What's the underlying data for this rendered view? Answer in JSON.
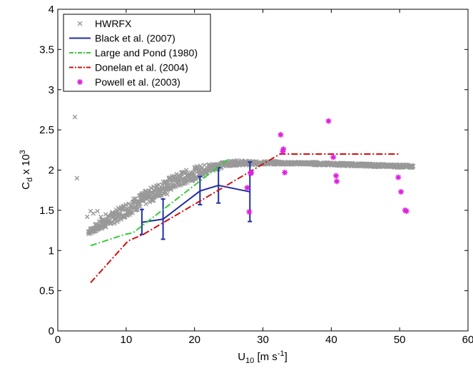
{
  "chart_data": {
    "type": "scatter",
    "xlabel_main": "U",
    "xlabel_sub": "10",
    "xlabel_unit": " [m s",
    "xlabel_sup": "-1",
    "xlabel_close": "]",
    "ylabel_main": "C",
    "ylabel_sub": "d",
    "ylabel_unit": " x 10",
    "ylabel_sup": "3",
    "xlim": [
      0,
      60
    ],
    "ylim": [
      0,
      4
    ],
    "xticks": [
      "0",
      "10",
      "20",
      "30",
      "40",
      "50",
      "60"
    ],
    "yticks": [
      "0",
      "0.5",
      "1",
      "1.5",
      "2",
      "2.5",
      "3",
      "3.5",
      "4"
    ],
    "legend_position": "top-left",
    "grid": false,
    "series": [
      {
        "name": "HWRFX",
        "kind": "band-scatter",
        "color": "#999999",
        "band_x": [
          4.5,
          6,
          8,
          10,
          12,
          14,
          16,
          18,
          20,
          22,
          24,
          25,
          26,
          27,
          28,
          30,
          32,
          34,
          36,
          38,
          40,
          42,
          44,
          46,
          48,
          50,
          52
        ],
        "band_low": [
          1.2,
          1.25,
          1.32,
          1.42,
          1.52,
          1.62,
          1.72,
          1.8,
          1.88,
          1.96,
          2.03,
          2.05,
          2.06,
          2.06,
          2.06,
          2.07,
          2.07,
          2.07,
          2.07,
          2.06,
          2.06,
          2.05,
          2.05,
          2.04,
          2.04,
          2.03,
          2.03
        ],
        "band_high": [
          1.26,
          1.36,
          1.48,
          1.6,
          1.7,
          1.8,
          1.9,
          1.98,
          2.04,
          2.08,
          2.1,
          2.11,
          2.12,
          2.12,
          2.11,
          2.11,
          2.11,
          2.1,
          2.1,
          2.1,
          2.09,
          2.09,
          2.08,
          2.08,
          2.07,
          2.07,
          2.06
        ],
        "outliers_x": [
          2.5,
          2.8,
          4.3,
          4.8,
          5.2,
          5.8,
          6.3,
          7.0,
          8.5,
          9.5,
          11.2,
          12.5,
          14.0,
          16.0
        ],
        "outliers_y": [
          2.66,
          1.9,
          1.42,
          1.49,
          1.46,
          1.49,
          1.42,
          1.45,
          1.48,
          1.53,
          1.6,
          1.64,
          1.66,
          1.7
        ]
      },
      {
        "name": "Black et al. (2007)",
        "kind": "line-errorbar",
        "color": "#1f2fa8",
        "x": [
          12.3,
          15.4,
          20.8,
          23.5,
          28.1
        ],
        "y": [
          1.35,
          1.39,
          1.74,
          1.81,
          1.73
        ],
        "err_low": [
          1.2,
          1.14,
          1.57,
          1.59,
          1.36
        ],
        "err_high": [
          1.51,
          1.64,
          1.92,
          2.03,
          2.1
        ]
      },
      {
        "name": "Large and Pond (1980)",
        "kind": "dashdot",
        "color": "#33cc33",
        "x": [
          4.8,
          9.8,
          11.0,
          25.0
        ],
        "y": [
          1.06,
          1.2,
          1.22,
          2.14
        ]
      },
      {
        "name": "Donelan et al. (2004)",
        "kind": "dashdot",
        "color": "#cc1111",
        "x": [
          4.8,
          10.3,
          12.5,
          32.5,
          50.0
        ],
        "y": [
          0.6,
          1.12,
          1.2,
          2.2,
          2.2
        ]
      },
      {
        "name": "Powell et al. (2003)",
        "kind": "asterisk",
        "color": "#dd22dd",
        "x": [
          27.7,
          28.0,
          28.2,
          28.3,
          32.6,
          32.9,
          33.0,
          33.2,
          39.6,
          40.3,
          40.7,
          40.8,
          49.8,
          50.2,
          50.8,
          51.0
        ],
        "y": [
          1.78,
          1.48,
          1.96,
          1.97,
          2.44,
          2.23,
          2.26,
          1.97,
          2.61,
          2.16,
          1.93,
          1.86,
          1.91,
          1.73,
          1.5,
          1.49
        ]
      }
    ]
  }
}
